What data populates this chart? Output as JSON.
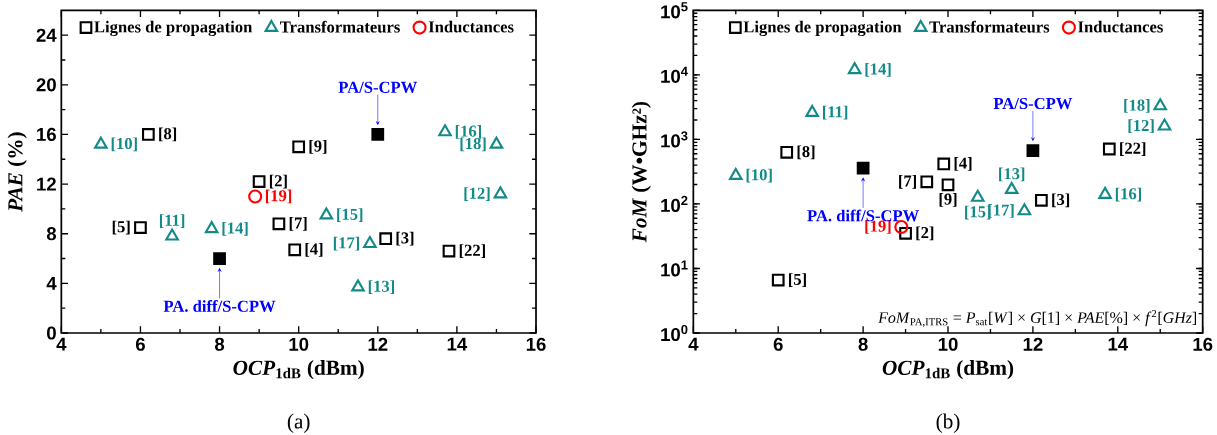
{
  "chart_data": [
    {
      "type": "scatter",
      "title": "(a)",
      "xlabel": "*OCP*$_{1dB}$ (dBm)",
      "ylabel": "*PAE* (%)",
      "xlim": [
        4,
        16
      ],
      "ylim": [
        0,
        26
      ],
      "xticks": [
        4,
        6,
        8,
        10,
        12,
        14,
        16
      ],
      "yticks": [
        0,
        4,
        8,
        12,
        16,
        20,
        24
      ],
      "legend": "top",
      "series": [
        {
          "name": "Lignes de propagation",
          "color": "#000000",
          "marker": "square",
          "x": [
            6.2,
            10,
            9,
            6,
            9.5,
            9.9,
            12.2,
            13.8
          ],
          "values": [
            16,
            15,
            12.2,
            8.5,
            8.8,
            6.7,
            7.6,
            6.6
          ]
        },
        {
          "name": "Transformateurs",
          "color": "#138a8a",
          "marker": "triangle",
          "x": [
            5,
            13.7,
            15,
            15.1,
            10.7,
            6.8,
            7.8,
            11.8,
            11.5
          ],
          "values": [
            15.2,
            16.2,
            15.2,
            11.2,
            9.5,
            7.8,
            8.4,
            7.2,
            3.7
          ]
        },
        {
          "name": "Inductances",
          "color": "#ff0000",
          "marker": "circle",
          "x": [
            8.9
          ],
          "values": [
            11
          ]
        },
        {
          "color": "#000000",
          "marker": "square",
          "x": [
            12,
            8
          ],
          "values": [
            16,
            6
          ]
        }
      ],
      "annotations": [
        {
          "text": "[8]",
          "x": 6.2,
          "y": 16
        },
        {
          "text": "[9]",
          "x": 10,
          "y": 15
        },
        {
          "text": "[2]",
          "x": 9,
          "y": 12.2
        },
        {
          "text": "[5]",
          "x": 6,
          "y": 8.5
        },
        {
          "text": "[7]",
          "x": 9.5,
          "y": 8.8
        },
        {
          "text": "[4]",
          "x": 9.9,
          "y": 6.7
        },
        {
          "text": "[3]",
          "x": 12.2,
          "y": 7.6
        },
        {
          "text": "[22]",
          "x": 13.8,
          "y": 6.6
        },
        {
          "text": "[10]",
          "x": 5,
          "y": 15.2
        },
        {
          "text": "[16]",
          "x": 13.7,
          "y": 16.2
        },
        {
          "text": "[18]",
          "x": 15,
          "y": 15.2
        },
        {
          "text": "[12]",
          "x": 15.1,
          "y": 11.2
        },
        {
          "text": "[15]",
          "x": 10.7,
          "y": 9.5
        },
        {
          "text": "[11]",
          "x": 6.8,
          "y": 7.8
        },
        {
          "text": "[14]",
          "x": 7.8,
          "y": 8.4
        },
        {
          "text": "[17]",
          "x": 11.8,
          "y": 7.2
        },
        {
          "text": "[13]",
          "x": 11.5,
          "y": 3.7
        },
        {
          "text": "[19]",
          "x": 8.9,
          "y": 11
        },
        {
          "text": "PA/S-CPW",
          "x": 12,
          "y": 16
        },
        {
          "text": "PA. diff/S-CPW",
          "x": 8,
          "y": 6
        }
      ]
    },
    {
      "type": "scatter",
      "title": "(b)",
      "xlabel": "*OCP*$_{1dB}$ (dBm)",
      "ylabel": "*FoM* (W•GHz²)",
      "log": "y",
      "xlim": [
        4,
        16
      ],
      "ylim": [
        1,
        100000
      ],
      "xticks": [
        4,
        6,
        8,
        10,
        12,
        14,
        16
      ],
      "yticks": [
        {
          "value": 1,
          "label": "10$^{0}$"
        },
        {
          "value": 10,
          "label": "10$^{1}$"
        },
        {
          "value": 100,
          "label": "10$^{2}$"
        },
        {
          "value": 1000,
          "label": "10$^{3}$"
        },
        {
          "value": 10000,
          "label": "10$^{4}$"
        },
        {
          "value": 100000,
          "label": "10$^{5}$"
        }
      ],
      "legend": "top",
      "series": [
        {
          "name": "Lignes de propagation",
          "color": "#000000",
          "marker": "square",
          "x": [
            6.2,
            9.9,
            9.5,
            10,
            12.2,
            13.8,
            9,
            6
          ],
          "values": [
            630,
            417,
            220,
            198,
            114,
            710,
            35,
            6.6
          ]
        },
        {
          "name": "Transformateurs",
          "color": "#138a8a",
          "marker": "triangle",
          "x": [
            7.8,
            6.8,
            5,
            10.7,
            11.5,
            11.8,
            13.7,
            15,
            15.1
          ],
          "values": [
            12000,
            2600,
            275,
            126,
            167,
            78,
            140,
            3300,
            1600
          ]
        },
        {
          "name": "Inductances",
          "color": "#ff0000",
          "marker": "circle",
          "x": [
            8.9
          ],
          "values": [
            44
          ]
        },
        {
          "color": "#000000",
          "marker": "square",
          "x": [
            12,
            8
          ],
          "values": [
            670,
            360
          ]
        }
      ],
      "annotations": [
        {
          "text": "[8]",
          "x": 6.2,
          "y": 630
        },
        {
          "text": "[4]",
          "x": 9.9,
          "y": 417
        },
        {
          "text": "[7]",
          "x": 9.5,
          "y": 220
        },
        {
          "text": "[9]",
          "x": 10,
          "y": 198
        },
        {
          "text": "[3]",
          "x": 12.2,
          "y": 114
        },
        {
          "text": "[22]",
          "x": 13.8,
          "y": 710
        },
        {
          "text": "[2]",
          "x": 9,
          "y": 35
        },
        {
          "text": "[5]",
          "x": 6,
          "y": 6.6
        },
        {
          "text": "[14]",
          "x": 7.8,
          "y": 12000
        },
        {
          "text": "[11]",
          "x": 6.8,
          "y": 2600
        },
        {
          "text": "[10]",
          "x": 5,
          "y": 275
        },
        {
          "text": "[15]",
          "x": 10.7,
          "y": 126
        },
        {
          "text": "[13]",
          "x": 11.5,
          "y": 167
        },
        {
          "text": "[17]",
          "x": 11.8,
          "y": 78
        },
        {
          "text": "[16]",
          "x": 13.7,
          "y": 140
        },
        {
          "text": "[18]",
          "x": 15,
          "y": 3300
        },
        {
          "text": "[12]",
          "x": 15.1,
          "y": 1600
        },
        {
          "text": "[19]",
          "x": 8.9,
          "y": 44
        },
        {
          "text": "PA/S-CPW",
          "x": 12,
          "y": 670
        },
        {
          "text": "PA. diff/S-CPW",
          "x": 8,
          "y": 360
        },
        "*FoM*$_{PA,ITRS}$ = *P*$_{sat}$[*W*] × *G*[1] × *PAE*[%] × *f*$^{2}$[*GHz*]"
      ]
    }
  ]
}
